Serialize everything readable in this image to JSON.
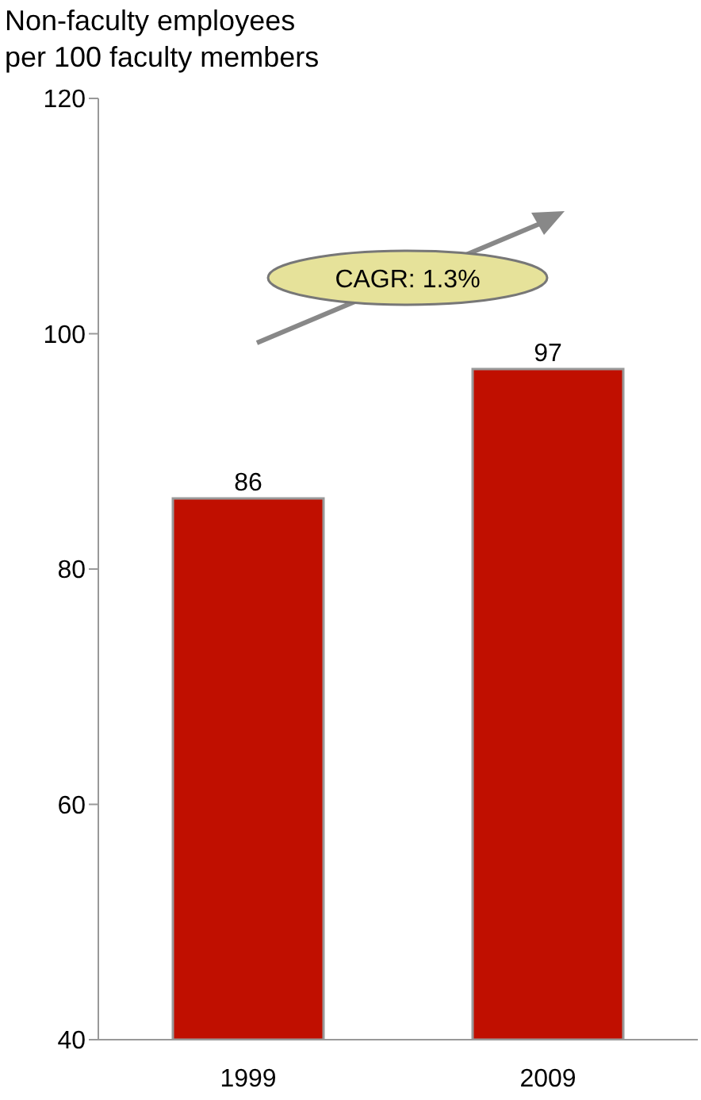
{
  "chart_data": {
    "type": "bar",
    "title": "Non-faculty employees\nper 100 faculty members",
    "categories": [
      "1999",
      "2009"
    ],
    "values": [
      86,
      97
    ],
    "color": "#c00f00",
    "ylim": [
      40,
      120
    ],
    "yticks": [
      40,
      60,
      80,
      100,
      120
    ],
    "data_labels": true,
    "annotations": [
      "CAGR: 1.3%"
    ]
  }
}
